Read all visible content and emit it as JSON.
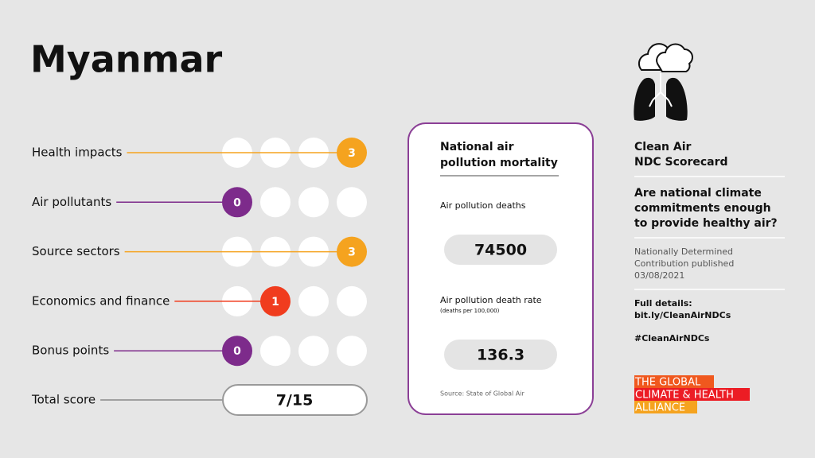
{
  "header": {
    "title": "Myanmar"
  },
  "scores": {
    "rows": [
      {
        "label": "Health impacts",
        "score": 3,
        "max": 3,
        "color": "#f5a31f"
      },
      {
        "label": "Air pollutants",
        "score": 0,
        "max": 3,
        "color": "#7d2b8b"
      },
      {
        "label": "Source sectors",
        "score": 3,
        "max": 3,
        "color": "#f5a31f"
      },
      {
        "label": "Economics and finance",
        "score": 1,
        "max": 3,
        "color": "#f03c1e"
      },
      {
        "label": "Bonus points",
        "score": 0,
        "max": 3,
        "color": "#7d2b8b"
      }
    ],
    "total_label": "Total score",
    "total": "7/15"
  },
  "mortality": {
    "title": [
      "National air",
      "pollution mortality"
    ],
    "deaths_label": "Air pollution deaths",
    "deaths": 74500,
    "rate_label": "Air pollution death rate",
    "rate_unit": "(deaths per 100,000)",
    "rate": 136.3,
    "source": "Source: State of Global Air"
  },
  "sidebar": {
    "title": [
      "Clean Air",
      "NDC Scorecard"
    ],
    "question": [
      "Are national climate",
      "commitments enough",
      "to provide healthy air?"
    ],
    "ndc": [
      "Nationally Determined",
      "Contribution published",
      "03/08/2021"
    ],
    "details": [
      "Full details:",
      "bit.ly/CleanAirNDCs"
    ],
    "hashtag": "#CleanAirNDCs",
    "logo": [
      "THE GLOBAL",
      "CLIMATE & HEALTH",
      "ALLIANCE"
    ]
  }
}
